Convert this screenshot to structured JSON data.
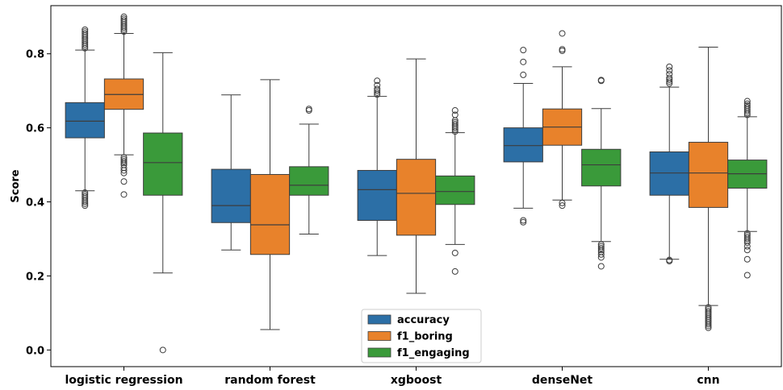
{
  "chart_data": {
    "type": "box",
    "ylabel": "Score",
    "xlabel": "",
    "ylim": [
      -0.045,
      0.93
    ],
    "yticks": [
      0.0,
      0.2,
      0.4,
      0.6,
      0.8
    ],
    "ytick_labels": [
      "0.0",
      "0.2",
      "0.4",
      "0.6",
      "0.8"
    ],
    "categories": [
      "logistic regression",
      "random forest",
      "xgboost",
      "denseNet",
      "cnn"
    ],
    "legend_position": "bottom-center",
    "series": [
      {
        "name": "accuracy",
        "color": "#2c6fa6",
        "boxes": [
          {
            "whislo": 0.43,
            "q1": 0.573,
            "med": 0.618,
            "q3": 0.668,
            "whishi": 0.81,
            "fliers": [
              0.39,
              0.395,
              0.4,
              0.405,
              0.41,
              0.415,
              0.42,
              0.425,
              0.815,
              0.82,
              0.825,
              0.83,
              0.835,
              0.84,
              0.845,
              0.85,
              0.855,
              0.86,
              0.865
            ]
          },
          {
            "whislo": 0.27,
            "q1": 0.344,
            "med": 0.39,
            "q3": 0.488,
            "whishi": 0.689,
            "fliers": []
          },
          {
            "whislo": 0.255,
            "q1": 0.35,
            "med": 0.433,
            "q3": 0.485,
            "whishi": 0.685,
            "fliers": [
              0.69,
              0.695,
              0.7,
              0.705,
              0.715,
              0.727
            ]
          },
          {
            "whislo": 0.383,
            "q1": 0.508,
            "med": 0.552,
            "q3": 0.6,
            "whishi": 0.72,
            "fliers": [
              0.345,
              0.35,
              0.743,
              0.778,
              0.81
            ]
          },
          {
            "whislo": 0.245,
            "q1": 0.418,
            "med": 0.478,
            "q3": 0.535,
            "whishi": 0.71,
            "fliers": [
              0.24,
              0.243,
              0.72,
              0.725,
              0.73,
              0.735,
              0.745,
              0.755,
              0.765
            ]
          }
        ]
      },
      {
        "name": "f1_boring",
        "color": "#e8822b",
        "boxes": [
          {
            "whislo": 0.527,
            "q1": 0.65,
            "med": 0.69,
            "q3": 0.732,
            "whishi": 0.855,
            "fliers": [
              0.42,
              0.455,
              0.478,
              0.485,
              0.492,
              0.5,
              0.505,
              0.51,
              0.515,
              0.52,
              0.86,
              0.865,
              0.87,
              0.875,
              0.88,
              0.885,
              0.89,
              0.895,
              0.9
            ]
          },
          {
            "whislo": 0.055,
            "q1": 0.258,
            "med": 0.338,
            "q3": 0.474,
            "whishi": 0.73,
            "fliers": []
          },
          {
            "whislo": 0.153,
            "q1": 0.31,
            "med": 0.423,
            "q3": 0.515,
            "whishi": 0.786,
            "fliers": []
          },
          {
            "whislo": 0.405,
            "q1": 0.553,
            "med": 0.602,
            "q3": 0.651,
            "whishi": 0.765,
            "fliers": [
              0.39,
              0.397,
              0.808,
              0.812,
              0.855
            ]
          },
          {
            "whislo": 0.12,
            "q1": 0.385,
            "med": 0.478,
            "q3": 0.561,
            "whishi": 0.818,
            "fliers": [
              0.06,
              0.065,
              0.07,
              0.075,
              0.08,
              0.085,
              0.09,
              0.095,
              0.1,
              0.105,
              0.11,
              0.115
            ]
          }
        ]
      },
      {
        "name": "f1_engaging",
        "color": "#3a9a3a",
        "boxes": [
          {
            "whislo": 0.208,
            "q1": 0.418,
            "med": 0.506,
            "q3": 0.586,
            "whishi": 0.803,
            "fliers": [
              0.0
            ]
          },
          {
            "whislo": 0.313,
            "q1": 0.418,
            "med": 0.445,
            "q3": 0.495,
            "whishi": 0.61,
            "fliers": [
              0.647,
              0.651
            ]
          },
          {
            "whislo": 0.285,
            "q1": 0.393,
            "med": 0.428,
            "q3": 0.47,
            "whishi": 0.587,
            "fliers": [
              0.212,
              0.262,
              0.59,
              0.595,
              0.6,
              0.605,
              0.61,
              0.615,
              0.62,
              0.635,
              0.647
            ]
          },
          {
            "whislo": 0.293,
            "q1": 0.443,
            "med": 0.5,
            "q3": 0.542,
            "whishi": 0.652,
            "fliers": [
              0.226,
              0.25,
              0.258,
              0.265,
              0.27,
              0.275,
              0.28,
              0.285,
              0.727,
              0.729
            ]
          },
          {
            "whislo": 0.32,
            "q1": 0.437,
            "med": 0.476,
            "q3": 0.513,
            "whishi": 0.63,
            "fliers": [
              0.202,
              0.245,
              0.27,
              0.28,
              0.29,
              0.295,
              0.3,
              0.305,
              0.31,
              0.315,
              0.635,
              0.64,
              0.645,
              0.65,
              0.655,
              0.66,
              0.665,
              0.672
            ]
          }
        ]
      }
    ]
  }
}
